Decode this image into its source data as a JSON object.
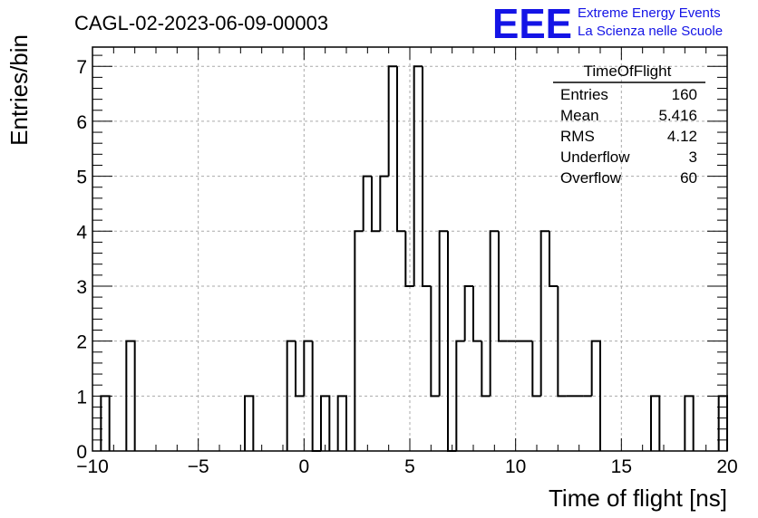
{
  "chart_data": {
    "type": "histogram",
    "title": "CAGL-02-2023-06-09-00003",
    "xlabel": "Time of flight [ns]",
    "ylabel": "Entries/bin",
    "xlim": [
      -10,
      20
    ],
    "ylim": [
      0,
      7.35
    ],
    "bin_width": 0.4,
    "grid": true,
    "x_tick_labels": [
      "−10",
      "−5",
      "0",
      "5",
      "10",
      "15",
      "20"
    ],
    "y_tick_labels": [
      "0",
      "1",
      "2",
      "3",
      "4",
      "5",
      "6",
      "7"
    ],
    "bins": [
      {
        "x": -9.2,
        "y": 1
      },
      {
        "x": -8.0,
        "y": 2
      },
      {
        "x": -2.4,
        "y": 1
      },
      {
        "x": -0.4,
        "y": 2
      },
      {
        "x": 0.0,
        "y": 1
      },
      {
        "x": 0.4,
        "y": 2
      },
      {
        "x": 0.8,
        "y": 0
      },
      {
        "x": 1.2,
        "y": 1
      },
      {
        "x": 2.0,
        "y": 1
      },
      {
        "x": 2.8,
        "y": 4
      },
      {
        "x": 3.2,
        "y": 5
      },
      {
        "x": 3.6,
        "y": 4
      },
      {
        "x": 4.0,
        "y": 5
      },
      {
        "x": 4.4,
        "y": 7
      },
      {
        "x": 4.8,
        "y": 4
      },
      {
        "x": 5.2,
        "y": 3
      },
      {
        "x": 5.6,
        "y": 7
      },
      {
        "x": 6.0,
        "y": 3
      },
      {
        "x": 6.4,
        "y": 1
      },
      {
        "x": 6.8,
        "y": 4
      },
      {
        "x": 7.2,
        "y": 0
      },
      {
        "x": 7.6,
        "y": 2
      },
      {
        "x": 8.0,
        "y": 3
      },
      {
        "x": 8.4,
        "y": 2
      },
      {
        "x": 8.8,
        "y": 1
      },
      {
        "x": 9.2,
        "y": 4
      },
      {
        "x": 9.6,
        "y": 2
      },
      {
        "x": 10.0,
        "y": 2
      },
      {
        "x": 10.4,
        "y": 2
      },
      {
        "x": 10.8,
        "y": 2
      },
      {
        "x": 11.2,
        "y": 1
      },
      {
        "x": 11.6,
        "y": 4
      },
      {
        "x": 12.0,
        "y": 3
      },
      {
        "x": 12.4,
        "y": 1
      },
      {
        "x": 12.8,
        "y": 1
      },
      {
        "x": 13.2,
        "y": 1
      },
      {
        "x": 13.6,
        "y": 1
      },
      {
        "x": 14.0,
        "y": 2
      },
      {
        "x": 16.8,
        "y": 1
      },
      {
        "x": 18.4,
        "y": 1
      },
      {
        "x": 20.0,
        "y": 1
      }
    ]
  },
  "logo": {
    "mark": "EEE",
    "line1": "Extreme Energy Events",
    "line2": "La Scienza nelle Scuole",
    "color": "#1414e6"
  },
  "stats_box": {
    "title": "TimeOfFlight",
    "rows": [
      {
        "label": "Entries",
        "value": "160"
      },
      {
        "label": "Mean",
        "value": "5.416"
      },
      {
        "label": "RMS",
        "value": "4.12"
      },
      {
        "label": "Underflow",
        "value": "3"
      },
      {
        "label": "Overflow",
        "value": "60"
      }
    ]
  }
}
